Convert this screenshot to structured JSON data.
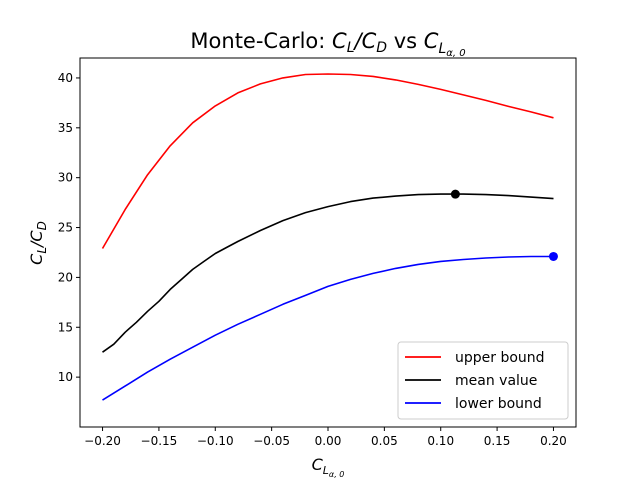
{
  "chart_data": {
    "type": "line",
    "title": {
      "prefix": "Monte-Carlo: ",
      "ratio_num": "C",
      "ratio_num_sub": "L",
      "ratio_den": "C",
      "ratio_den_sub": "D",
      "middle": " vs ",
      "param": "C",
      "param_sub": "L",
      "param_subsub": "α, 0"
    },
    "xlabel": {
      "main": "C",
      "sub": "L",
      "subsub": "α, 0"
    },
    "ylabel": {
      "num": "C",
      "num_sub": "L",
      "den": "C",
      "den_sub": "D"
    },
    "xlim": [
      -0.22,
      0.22
    ],
    "ylim": [
      5.0,
      42.0
    ],
    "xticks": [
      -0.2,
      -0.15,
      -0.1,
      -0.05,
      0.0,
      0.05,
      0.1,
      0.15,
      0.2
    ],
    "xtick_labels": [
      "−0.20",
      "−0.15",
      "−0.10",
      "−0.05",
      "0.00",
      "0.05",
      "0.10",
      "0.15",
      "0.20"
    ],
    "yticks": [
      10,
      15,
      20,
      25,
      30,
      35,
      40
    ],
    "ytick_labels": [
      "10",
      "15",
      "20",
      "25",
      "30",
      "35",
      "40"
    ],
    "grid": false,
    "legend_position": "lower-right",
    "series": [
      {
        "name": "upper bound",
        "color": "#ff0000",
        "x": [
          -0.2,
          -0.18,
          -0.16,
          -0.14,
          -0.12,
          -0.1,
          -0.08,
          -0.06,
          -0.04,
          -0.02,
          0.0,
          0.02,
          0.04,
          0.06,
          0.08,
          0.1,
          0.12,
          0.14,
          0.16,
          0.18,
          0.2
        ],
        "y": [
          22.9,
          26.8,
          30.3,
          33.2,
          35.5,
          37.2,
          38.5,
          39.4,
          40.0,
          40.35,
          40.4,
          40.35,
          40.15,
          39.8,
          39.35,
          38.85,
          38.3,
          37.75,
          37.15,
          36.6,
          36.0
        ]
      },
      {
        "name": "mean value",
        "color": "#000000",
        "x": [
          -0.2,
          -0.19,
          -0.18,
          -0.17,
          -0.16,
          -0.15,
          -0.14,
          -0.13,
          -0.12,
          -0.11,
          -0.1,
          -0.09,
          -0.08,
          -0.06,
          -0.04,
          -0.02,
          0.0,
          0.02,
          0.04,
          0.06,
          0.08,
          0.1,
          0.113,
          0.12,
          0.14,
          0.16,
          0.18,
          0.2
        ],
        "y": [
          12.5,
          13.3,
          14.5,
          15.5,
          16.6,
          17.6,
          18.8,
          19.8,
          20.8,
          21.6,
          22.4,
          23.0,
          23.6,
          24.7,
          25.7,
          26.5,
          27.1,
          27.6,
          27.95,
          28.15,
          28.3,
          28.35,
          28.35,
          28.35,
          28.3,
          28.2,
          28.05,
          27.9
        ]
      },
      {
        "name": "lower bound",
        "color": "#0000ff",
        "x": [
          -0.2,
          -0.18,
          -0.16,
          -0.14,
          -0.12,
          -0.1,
          -0.08,
          -0.06,
          -0.04,
          -0.02,
          0.0,
          0.02,
          0.04,
          0.06,
          0.08,
          0.1,
          0.12,
          0.14,
          0.16,
          0.18,
          0.2
        ],
        "y": [
          7.7,
          9.1,
          10.5,
          11.8,
          13.0,
          14.2,
          15.3,
          16.3,
          17.3,
          18.2,
          19.1,
          19.8,
          20.4,
          20.9,
          21.3,
          21.6,
          21.8,
          21.95,
          22.05,
          22.1,
          22.1
        ]
      }
    ],
    "markers": [
      {
        "series": "mean value",
        "x": 0.113,
        "y": 28.35,
        "color": "#000000"
      },
      {
        "series": "lower bound",
        "x": 0.2,
        "y": 22.1,
        "color": "#0000ff"
      }
    ]
  }
}
